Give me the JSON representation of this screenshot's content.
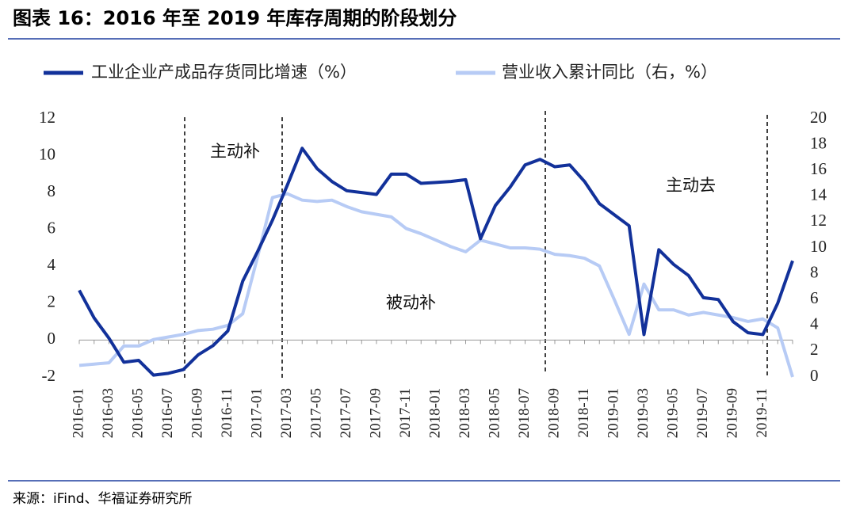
{
  "chart_data": {
    "type": "line",
    "title": "图表 16：2016 年至 2019 年库存周期的阶段划分",
    "source": "来源：iFind、华福证券研究所",
    "annotations": [
      "主动补",
      "被动补",
      "主动去"
    ],
    "categories": [
      "2016-01",
      null,
      "2016-03",
      null,
      "2016-05",
      null,
      "2016-07",
      null,
      "2016-09",
      null,
      "2016-11",
      null,
      "2017-01",
      null,
      "2017-03",
      null,
      "2017-05",
      null,
      "2017-07",
      null,
      "2017-09",
      null,
      "2017-11",
      null,
      "2018-01",
      null,
      "2018-03",
      null,
      "2018-05",
      null,
      "2018-07",
      null,
      "2018-09",
      null,
      "2018-11",
      null,
      "2019-01",
      null,
      "2019-03",
      null,
      "2019-05",
      null,
      "2019-07",
      null,
      "2019-09",
      null,
      "2019-11",
      null,
      null
    ],
    "series": [
      {
        "name": "工业企业产成品存货同比增速（%）",
        "color": "#12319a",
        "values": [
          2.7,
          1.2,
          0.1,
          -1.2,
          -1.1,
          -1.9,
          -1.8,
          -1.6,
          -0.8,
          -0.3,
          0.5,
          3.2,
          4.8,
          6.5,
          8.4,
          10.4,
          9.3,
          8.6,
          8.1,
          8.0,
          7.9,
          9.0,
          9.0,
          8.5,
          8.55,
          8.6,
          8.7,
          5.5,
          7.3,
          8.3,
          9.5,
          9.8,
          9.4,
          9.5,
          8.6,
          7.4,
          6.8,
          6.2,
          0.3,
          4.9,
          4.1,
          3.5,
          2.3,
          2.2,
          1.0,
          0.4,
          0.3,
          2.0,
          4.3
        ]
      },
      {
        "name": "营业收入累计同比（右，%）",
        "color": "#b7cbf5",
        "axis": "y2",
        "values": [
          0.9,
          1.0,
          1.1,
          2.4,
          2.4,
          2.9,
          3.1,
          3.3,
          3.6,
          3.7,
          4.0,
          4.9,
          9.3,
          13.9,
          14.2,
          13.7,
          13.6,
          13.7,
          13.2,
          12.8,
          12.6,
          12.4,
          11.5,
          11.1,
          10.6,
          10.1,
          9.7,
          10.6,
          10.3,
          10.0,
          10.0,
          9.9,
          9.5,
          9.4,
          9.2,
          8.6,
          6.0,
          3.3,
          7.2,
          5.2,
          5.2,
          4.8,
          5.0,
          4.8,
          4.6,
          4.3,
          4.5,
          3.8,
          0.0
        ]
      }
    ],
    "ylim": [
      -2,
      12
    ],
    "yticks": [
      -2,
      0,
      2,
      4,
      6,
      8,
      10,
      12
    ],
    "y2lim": [
      0,
      20
    ],
    "y2ticks": [
      0,
      2,
      4,
      6,
      8,
      10,
      12,
      14,
      16,
      18,
      20
    ]
  }
}
